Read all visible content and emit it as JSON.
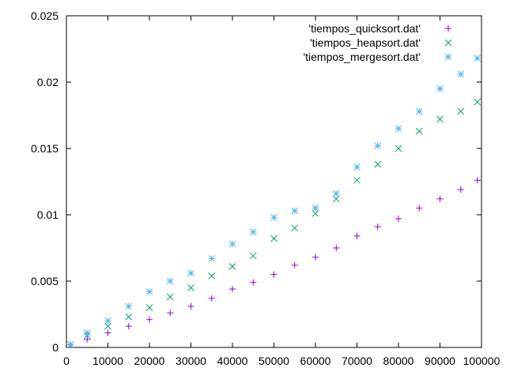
{
  "chart_data": {
    "type": "scatter",
    "title": "",
    "xlabel": "",
    "ylabel": "",
    "xlim": [
      0,
      100000
    ],
    "ylim": [
      0,
      0.025
    ],
    "grid": false,
    "legend_position": "top-right",
    "x_ticks": [
      {
        "value": 0,
        "label": "0"
      },
      {
        "value": 10000,
        "label": "10000"
      },
      {
        "value": 20000,
        "label": "20000"
      },
      {
        "value": 30000,
        "label": "30000"
      },
      {
        "value": 40000,
        "label": "40000"
      },
      {
        "value": 50000,
        "label": "50000"
      },
      {
        "value": 60000,
        "label": "60000"
      },
      {
        "value": 70000,
        "label": "70000"
      },
      {
        "value": 80000,
        "label": "80000"
      },
      {
        "value": 90000,
        "label": "90000"
      },
      {
        "value": 100000,
        "label": "100000"
      }
    ],
    "y_ticks": [
      {
        "value": 0,
        "label": "0"
      },
      {
        "value": 0.005,
        "label": "0.005"
      },
      {
        "value": 0.01,
        "label": "0.01"
      },
      {
        "value": 0.015,
        "label": "0.015"
      },
      {
        "value": 0.02,
        "label": "0.02"
      },
      {
        "value": 0.025,
        "label": "0.025"
      }
    ],
    "series": [
      {
        "name": "'tiempos_quicksort.dat'",
        "marker": "plus",
        "color": "#9400d3",
        "x": [
          1000,
          5000,
          10000,
          15000,
          20000,
          25000,
          30000,
          35000,
          40000,
          45000,
          50000,
          55000,
          60000,
          65000,
          70000,
          75000,
          80000,
          85000,
          90000,
          95000,
          99000
        ],
        "y": [
          0.0002,
          0.0006,
          0.0011,
          0.0016,
          0.0021,
          0.0026,
          0.0031,
          0.0037,
          0.0044,
          0.0049,
          0.0055,
          0.0062,
          0.0068,
          0.0075,
          0.0084,
          0.0091,
          0.0097,
          0.0105,
          0.0112,
          0.0119,
          0.0126
        ]
      },
      {
        "name": "'tiempos_heapsort.dat'",
        "marker": "cross",
        "color": "#009e73",
        "x": [
          1000,
          5000,
          10000,
          15000,
          20000,
          25000,
          30000,
          35000,
          40000,
          45000,
          50000,
          55000,
          60000,
          65000,
          70000,
          75000,
          80000,
          85000,
          90000,
          95000,
          99000
        ],
        "y": [
          0.0002,
          0.0009,
          0.0016,
          0.0023,
          0.003,
          0.0038,
          0.0045,
          0.0054,
          0.0061,
          0.0069,
          0.0082,
          0.009,
          0.0101,
          0.0112,
          0.0126,
          0.0138,
          0.015,
          0.0163,
          0.0172,
          0.0178,
          0.0185
        ]
      },
      {
        "name": "'tiempos_mergesort.dat'",
        "marker": "star",
        "color": "#56b4e9",
        "x": [
          1000,
          5000,
          10000,
          15000,
          20000,
          25000,
          30000,
          35000,
          40000,
          45000,
          50000,
          55000,
          60000,
          65000,
          70000,
          75000,
          80000,
          85000,
          90000,
          95000,
          99000
        ],
        "y": [
          0.0002,
          0.0011,
          0.002,
          0.0031,
          0.0042,
          0.005,
          0.0056,
          0.0067,
          0.0078,
          0.0087,
          0.0098,
          0.0103,
          0.0105,
          0.0116,
          0.0136,
          0.0152,
          0.0165,
          0.0178,
          0.0195,
          0.0206,
          0.0218
        ]
      }
    ]
  }
}
